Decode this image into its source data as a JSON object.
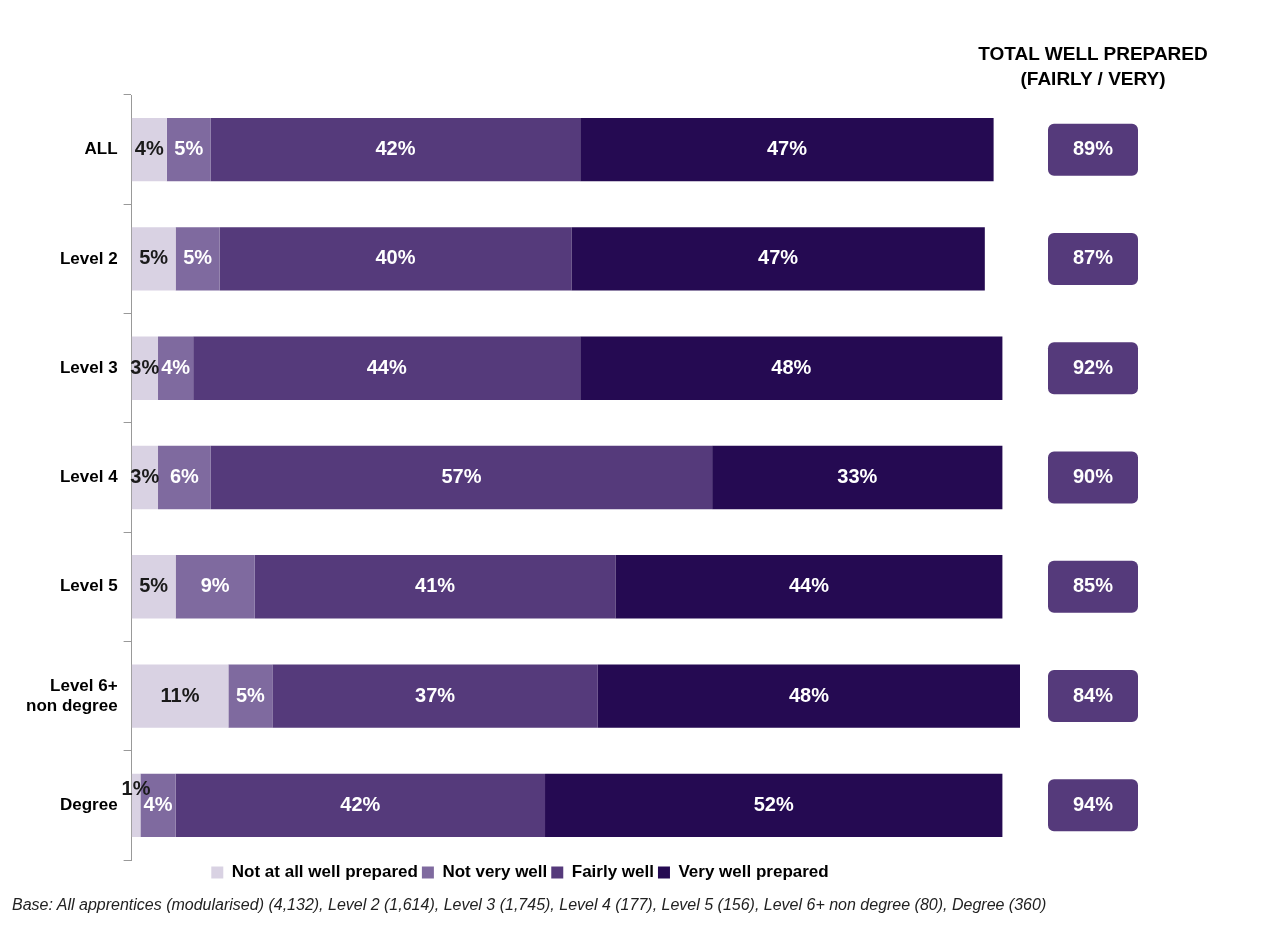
{
  "chart_data": {
    "type": "bar",
    "orientation": "horizontal",
    "stacked": true,
    "grid": false,
    "legend": "bottom",
    "tick_labels": "y",
    "categories": [
      "ALL",
      "Level 2",
      "Level 3",
      "Level 4",
      "Level 5",
      "Level 6+ non degree",
      "Degree"
    ],
    "series": [
      {
        "name": "Not at all well prepared",
        "color": "#d9d2e3",
        "values": [
          4,
          5,
          3,
          3,
          5,
          11,
          1
        ],
        "value_labels": [
          "4%",
          "5%",
          "3%",
          "3%",
          "5%",
          "11%",
          "1%"
        ]
      },
      {
        "name": "Not very well",
        "color": "#7f6a9f",
        "values": [
          5,
          5,
          4,
          6,
          9,
          5,
          4
        ],
        "value_labels": [
          "5%",
          "5%",
          "4%",
          "6%",
          "9%",
          "5%",
          "4%"
        ]
      },
      {
        "name": "Fairly well",
        "color": "#553a7b",
        "values": [
          42,
          40,
          44,
          57,
          41,
          37,
          42
        ],
        "value_labels": [
          "42%",
          "40%",
          "44%",
          "57%",
          "41%",
          "37%",
          "42%"
        ]
      },
      {
        "name": "Very well prepared",
        "color": "#250a52",
        "values": [
          47,
          47,
          48,
          33,
          44,
          48,
          52
        ],
        "value_labels": [
          "47%",
          "47%",
          "48%",
          "33%",
          "44%",
          "48%",
          "52%"
        ]
      }
    ],
    "annotations": [
      "TOTAL WELL PREPARED (FAIRLY / VERY)",
      "89%",
      "87%",
      "92%",
      "90%",
      "85%",
      "84%",
      "94%",
      "Base: All apprentices (modularised) (4,132), Level 2 (1,614), Level 3 (1,745), Level 4 (177), Level 5 (156), Level 6+ non degree (80), Degree (360)"
    ]
  }
}
